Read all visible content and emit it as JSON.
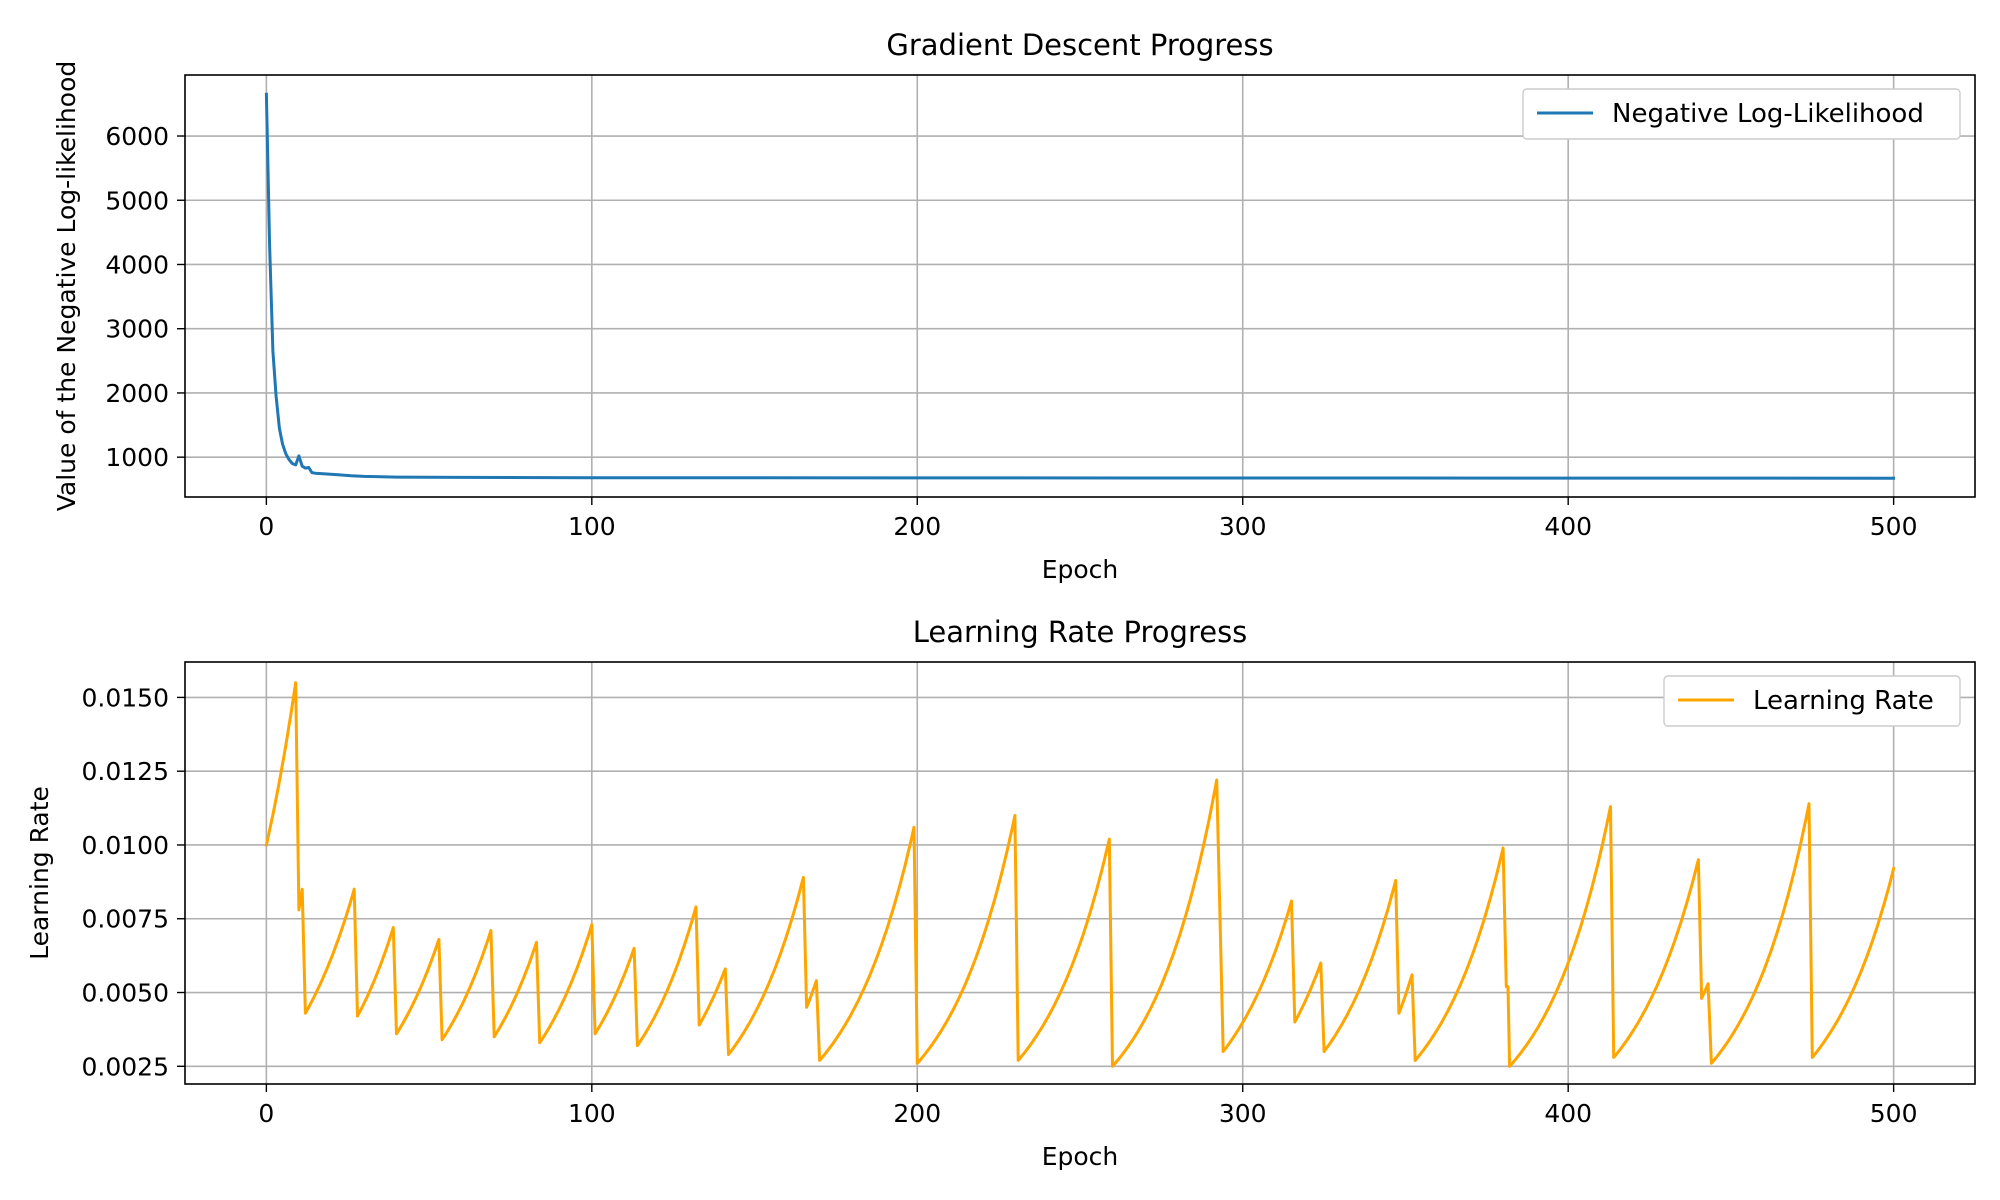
{
  "chart_data": [
    {
      "type": "line",
      "title": "Gradient Descent Progress",
      "xlabel": "Epoch",
      "ylabel": "Value of the Negative Log-likelihood",
      "xlim": [
        -25,
        525
      ],
      "ylim": [
        380,
        6950
      ],
      "xticks": [
        0,
        100,
        200,
        300,
        400,
        500
      ],
      "yticks": [
        1000,
        2000,
        3000,
        4000,
        5000,
        6000
      ],
      "grid": true,
      "legend_placement": "top-right",
      "series": [
        {
          "name": "Negative Log-Likelihood",
          "color": "#1f77b4",
          "points": [
            [
              0,
              6650
            ],
            [
              1,
              4300
            ],
            [
              2,
              2650
            ],
            [
              3,
              1950
            ],
            [
              4,
              1450
            ],
            [
              5,
              1200
            ],
            [
              6,
              1050
            ],
            [
              7,
              960
            ],
            [
              8,
              900
            ],
            [
              9,
              880
            ],
            [
              10,
              1020
            ],
            [
              11,
              860
            ],
            [
              12,
              830
            ],
            [
              13,
              840
            ],
            [
              14,
              760
            ],
            [
              15,
              750
            ],
            [
              18,
              740
            ],
            [
              22,
              725
            ],
            [
              26,
              710
            ],
            [
              30,
              700
            ],
            [
              40,
              690
            ],
            [
              60,
              685
            ],
            [
              100,
              680
            ],
            [
              200,
              678
            ],
            [
              300,
              676
            ],
            [
              400,
              675
            ],
            [
              500,
              673
            ]
          ]
        }
      ]
    },
    {
      "type": "line",
      "title": "Learning Rate Progress",
      "xlabel": "Epoch",
      "ylabel": "Learning Rate",
      "xlim": [
        -25,
        525
      ],
      "ylim": [
        0.0019,
        0.0162
      ],
      "xticks": [
        0,
        100,
        200,
        300,
        400,
        500
      ],
      "yticks": [
        0.0025,
        0.005,
        0.0075,
        0.01,
        0.0125,
        0.015
      ],
      "ytick_labels": [
        "0.0025",
        "0.0050",
        "0.0075",
        "0.0100",
        "0.0125",
        "0.0150"
      ],
      "grid": true,
      "legend_placement": "top-right",
      "series": [
        {
          "name": "Learning Rate",
          "color": "#ffa500",
          "sawtooth": [
            [
              0,
              0.01,
              9,
              0.0155
            ],
            [
              10,
              0.0078,
              11,
              0.0085
            ],
            [
              12,
              0.0043,
              27,
              0.0085
            ],
            [
              28,
              0.0042,
              39,
              0.0072
            ],
            [
              40,
              0.0036,
              53,
              0.0068
            ],
            [
              54,
              0.0034,
              69,
              0.0071
            ],
            [
              70,
              0.0035,
              83,
              0.0067
            ],
            [
              84,
              0.0033,
              100,
              0.0073
            ],
            [
              101,
              0.0036,
              113,
              0.0065
            ],
            [
              114,
              0.0032,
              132,
              0.0079
            ],
            [
              133,
              0.0039,
              141,
              0.0058
            ],
            [
              142,
              0.0029,
              165,
              0.0089
            ],
            [
              166,
              0.0045,
              169,
              0.0054
            ],
            [
              170,
              0.0027,
              199,
              0.0106
            ],
            [
              200,
              0.0026,
              230,
              0.011
            ],
            [
              231,
              0.0027,
              259,
              0.0102
            ],
            [
              260,
              0.0025,
              292,
              0.0122
            ],
            [
              294,
              0.003,
              315,
              0.0081
            ],
            [
              316,
              0.004,
              324,
              0.006
            ],
            [
              325,
              0.003,
              347,
              0.0088
            ],
            [
              348,
              0.0043,
              352,
              0.0056
            ],
            [
              353,
              0.0027,
              380,
              0.0099
            ],
            [
              381,
              0.0052,
              381.5,
              0.0052
            ],
            [
              382,
              0.0025,
              413,
              0.0113
            ],
            [
              414,
              0.0028,
              440,
              0.0095
            ],
            [
              441,
              0.0048,
              443,
              0.0053
            ],
            [
              444,
              0.0026,
              474,
              0.0114
            ],
            [
              475,
              0.0028,
              500,
              0.0092
            ]
          ]
        }
      ]
    }
  ]
}
